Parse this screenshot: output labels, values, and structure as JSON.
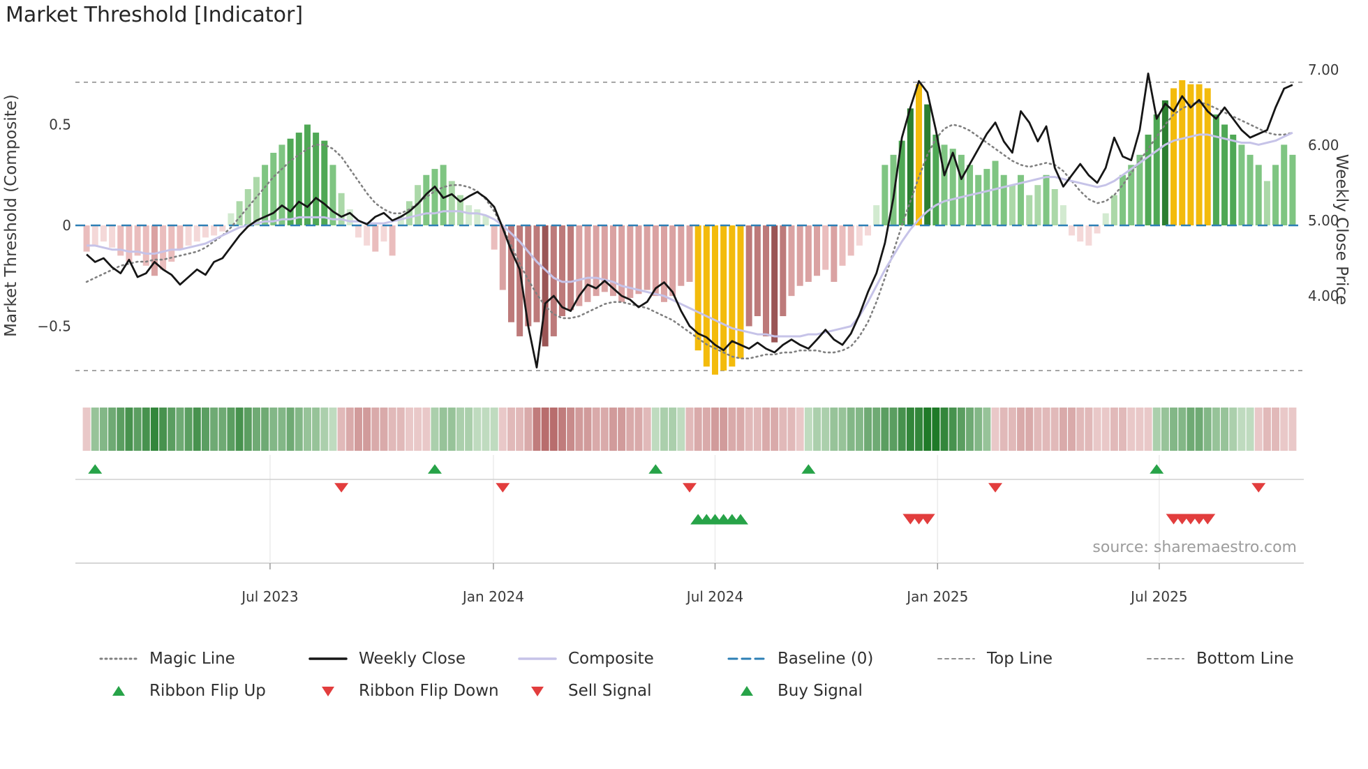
{
  "title": "Market Threshold [Indicator]",
  "source": "source: sharemaestro.com",
  "axes": {
    "left_label": "Market Threshold (Composite)",
    "right_label": "Weekly Close Price",
    "left_ticks": [
      {
        "value": 0.5,
        "label": "0.5"
      },
      {
        "value": 0.0,
        "label": "0"
      },
      {
        "value": -0.5,
        "label": "−0.5"
      }
    ],
    "right_ticks": [
      {
        "value": 7.0,
        "label": "7.00"
      },
      {
        "value": 6.0,
        "label": "6.00"
      },
      {
        "value": 5.0,
        "label": "5.00"
      },
      {
        "value": 4.0,
        "label": "4.00"
      }
    ]
  },
  "colors": {
    "magic": "#808080",
    "close": "#161616",
    "composite": "#c6c3e8",
    "baseline": "#2d7fb5",
    "band": "#909090",
    "buy": "#27a348",
    "sell": "#e23d3d",
    "gold": "#f3bb0c"
  },
  "legend": {
    "row1": [
      {
        "label": "Magic Line",
        "swatch": "magic"
      },
      {
        "label": "Weekly Close",
        "swatch": "close"
      },
      {
        "label": "Composite",
        "swatch": "composite"
      },
      {
        "label": "Baseline (0)",
        "swatch": "baseline"
      },
      {
        "label": "Top Line",
        "swatch": "refline"
      },
      {
        "label": "Bottom Line",
        "swatch": "refline"
      }
    ],
    "row2": [
      {
        "label": "Ribbon Flip Up",
        "swatch": "flip-up"
      },
      {
        "label": "Ribbon Flip Down",
        "swatch": "flip-down"
      },
      {
        "label": "Sell Signal",
        "swatch": "sell"
      },
      {
        "label": "Buy Signal",
        "swatch": "buy"
      }
    ]
  },
  "chart_data": {
    "type": "bar+line combo (weekly indicator with price overlay, signal ribbon and markers)",
    "n_weeks": 143,
    "frequency": "weekly",
    "left_ylim": [
      -0.85,
      0.85
    ],
    "right_ylim": [
      3.0,
      7.1
    ],
    "grid": "off (reference lines only)",
    "reference": {
      "top": 0.71,
      "baseline": 0,
      "bottom": -0.72
    },
    "x_ticks": [
      {
        "week": 21.6,
        "label": "Jul 2023"
      },
      {
        "week": 47.9,
        "label": "Jan 2024"
      },
      {
        "week": 74.0,
        "label": "Jul 2024"
      },
      {
        "week": 100.2,
        "label": "Jan 2025"
      },
      {
        "week": 126.3,
        "label": "Jul 2025"
      }
    ],
    "threshold": [
      -0.13,
      -0.1,
      -0.08,
      -0.11,
      -0.15,
      -0.18,
      -0.15,
      -0.2,
      -0.25,
      -0.22,
      -0.18,
      -0.12,
      -0.1,
      -0.08,
      -0.06,
      -0.05,
      -0.03,
      0.06,
      0.12,
      0.18,
      0.24,
      0.3,
      0.36,
      0.4,
      0.43,
      0.46,
      0.5,
      0.46,
      0.42,
      0.3,
      0.16,
      0.08,
      -0.06,
      -0.1,
      -0.13,
      -0.08,
      -0.15,
      0.05,
      0.12,
      0.2,
      0.25,
      0.28,
      0.3,
      0.22,
      0.15,
      0.1,
      0.08,
      0.05,
      -0.12,
      -0.32,
      -0.48,
      -0.55,
      -0.5,
      -0.48,
      -0.6,
      -0.55,
      -0.45,
      -0.42,
      -0.4,
      -0.38,
      -0.35,
      -0.33,
      -0.35,
      -0.38,
      -0.36,
      -0.34,
      -0.32,
      -0.35,
      -0.38,
      -0.35,
      -0.3,
      -0.28,
      -0.62,
      -0.7,
      -0.74,
      -0.72,
      -0.7,
      -0.66,
      -0.5,
      -0.45,
      -0.55,
      -0.58,
      -0.45,
      -0.35,
      -0.3,
      -0.28,
      -0.25,
      -0.22,
      -0.28,
      -0.2,
      -0.15,
      -0.1,
      -0.05,
      0.1,
      0.3,
      0.35,
      0.42,
      0.58,
      0.7,
      0.6,
      0.45,
      0.4,
      0.38,
      0.35,
      0.3,
      0.25,
      0.28,
      0.32,
      0.25,
      0.2,
      0.25,
      0.15,
      0.2,
      0.25,
      0.18,
      0.1,
      -0.05,
      -0.08,
      -0.1,
      -0.04,
      0.06,
      0.15,
      0.25,
      0.3,
      0.35,
      0.45,
      0.55,
      0.62,
      0.68,
      0.72,
      0.7,
      0.7,
      0.68,
      0.55,
      0.5,
      0.45,
      0.4,
      0.35,
      0.3,
      0.22,
      0.3,
      0.4,
      0.35
    ],
    "close": [
      4.55,
      4.45,
      4.5,
      4.38,
      4.3,
      4.48,
      4.25,
      4.3,
      4.45,
      4.35,
      4.28,
      4.15,
      4.25,
      4.35,
      4.28,
      4.45,
      4.5,
      4.65,
      4.8,
      4.92,
      5.0,
      5.05,
      5.1,
      5.2,
      5.12,
      5.25,
      5.18,
      5.3,
      5.22,
      5.12,
      5.05,
      5.1,
      5.0,
      4.95,
      5.05,
      5.1,
      5.0,
      5.05,
      5.12,
      5.22,
      5.35,
      5.45,
      5.3,
      5.35,
      5.25,
      5.32,
      5.38,
      5.3,
      5.18,
      4.9,
      4.6,
      4.35,
      3.6,
      3.05,
      3.9,
      4.0,
      3.85,
      3.8,
      4.0,
      4.15,
      4.1,
      4.2,
      4.1,
      4.0,
      3.95,
      3.85,
      3.92,
      4.1,
      4.18,
      4.05,
      3.8,
      3.6,
      3.5,
      3.45,
      3.35,
      3.28,
      3.4,
      3.35,
      3.3,
      3.38,
      3.3,
      3.25,
      3.35,
      3.42,
      3.35,
      3.3,
      3.42,
      3.55,
      3.42,
      3.35,
      3.5,
      3.75,
      4.05,
      4.3,
      4.7,
      5.3,
      6.1,
      6.5,
      6.85,
      6.7,
      6.2,
      5.6,
      5.9,
      5.55,
      5.75,
      5.95,
      6.15,
      6.3,
      6.05,
      5.9,
      6.45,
      6.3,
      6.05,
      6.25,
      5.7,
      5.45,
      5.6,
      5.75,
      5.6,
      5.5,
      5.7,
      6.1,
      5.85,
      5.8,
      6.2,
      6.95,
      6.35,
      6.55,
      6.45,
      6.65,
      6.5,
      6.6,
      6.45,
      6.35,
      6.5,
      6.35,
      6.2,
      6.1,
      6.15,
      6.2,
      6.5,
      6.75,
      6.8
    ],
    "composite": [
      -0.1,
      -0.1,
      -0.11,
      -0.12,
      -0.12,
      -0.13,
      -0.13,
      -0.14,
      -0.14,
      -0.13,
      -0.12,
      -0.12,
      -0.11,
      -0.1,
      -0.09,
      -0.07,
      -0.05,
      -0.03,
      -0.01,
      0.0,
      0.01,
      0.02,
      0.02,
      0.03,
      0.03,
      0.04,
      0.04,
      0.04,
      0.04,
      0.03,
      0.03,
      0.02,
      0.02,
      0.01,
      0.01,
      0.01,
      0.02,
      0.03,
      0.04,
      0.05,
      0.06,
      0.06,
      0.07,
      0.07,
      0.07,
      0.06,
      0.06,
      0.05,
      0.03,
      0.0,
      -0.04,
      -0.08,
      -0.13,
      -0.18,
      -0.22,
      -0.26,
      -0.28,
      -0.28,
      -0.27,
      -0.26,
      -0.26,
      -0.27,
      -0.28,
      -0.3,
      -0.31,
      -0.32,
      -0.33,
      -0.34,
      -0.35,
      -0.37,
      -0.39,
      -0.41,
      -0.43,
      -0.45,
      -0.47,
      -0.49,
      -0.51,
      -0.52,
      -0.53,
      -0.54,
      -0.54,
      -0.55,
      -0.55,
      -0.55,
      -0.55,
      -0.54,
      -0.54,
      -0.53,
      -0.52,
      -0.51,
      -0.5,
      -0.45,
      -0.38,
      -0.3,
      -0.22,
      -0.15,
      -0.08,
      -0.02,
      0.03,
      0.07,
      0.1,
      0.12,
      0.13,
      0.14,
      0.15,
      0.16,
      0.17,
      0.18,
      0.19,
      0.2,
      0.21,
      0.22,
      0.23,
      0.24,
      0.24,
      0.23,
      0.22,
      0.21,
      0.2,
      0.19,
      0.2,
      0.22,
      0.25,
      0.28,
      0.31,
      0.34,
      0.37,
      0.4,
      0.42,
      0.43,
      0.44,
      0.45,
      0.45,
      0.44,
      0.43,
      0.42,
      0.41,
      0.41,
      0.4,
      0.41,
      0.42,
      0.44,
      0.46
    ],
    "magic": [
      -0.28,
      -0.26,
      -0.24,
      -0.22,
      -0.2,
      -0.19,
      -0.18,
      -0.18,
      -0.17,
      -0.17,
      -0.16,
      -0.15,
      -0.14,
      -0.13,
      -0.11,
      -0.08,
      -0.05,
      -0.01,
      0.04,
      0.09,
      0.14,
      0.19,
      0.24,
      0.28,
      0.32,
      0.35,
      0.38,
      0.4,
      0.4,
      0.38,
      0.34,
      0.28,
      0.22,
      0.16,
      0.11,
      0.08,
      0.06,
      0.06,
      0.08,
      0.11,
      0.14,
      0.17,
      0.19,
      0.2,
      0.2,
      0.19,
      0.17,
      0.13,
      0.07,
      -0.01,
      -0.1,
      -0.19,
      -0.27,
      -0.34,
      -0.4,
      -0.44,
      -0.46,
      -0.46,
      -0.45,
      -0.43,
      -0.41,
      -0.39,
      -0.38,
      -0.38,
      -0.39,
      -0.4,
      -0.41,
      -0.43,
      -0.45,
      -0.47,
      -0.5,
      -0.53,
      -0.56,
      -0.59,
      -0.61,
      -0.63,
      -0.65,
      -0.66,
      -0.66,
      -0.65,
      -0.64,
      -0.64,
      -0.63,
      -0.63,
      -0.62,
      -0.62,
      -0.62,
      -0.63,
      -0.63,
      -0.62,
      -0.6,
      -0.55,
      -0.48,
      -0.38,
      -0.26,
      -0.13,
      0.0,
      0.12,
      0.24,
      0.35,
      0.43,
      0.48,
      0.5,
      0.49,
      0.47,
      0.44,
      0.41,
      0.38,
      0.35,
      0.32,
      0.3,
      0.29,
      0.3,
      0.31,
      0.3,
      0.27,
      0.22,
      0.17,
      0.13,
      0.11,
      0.12,
      0.15,
      0.2,
      0.26,
      0.32,
      0.38,
      0.44,
      0.5,
      0.55,
      0.58,
      0.6,
      0.61,
      0.6,
      0.58,
      0.56,
      0.54,
      0.52,
      0.5,
      0.48,
      0.46,
      0.45,
      0.45,
      0.46
    ],
    "ribbon": [
      -0.2,
      0.4,
      0.5,
      0.6,
      0.7,
      0.8,
      0.7,
      0.8,
      0.9,
      0.8,
      0.7,
      0.6,
      0.7,
      0.8,
      0.7,
      0.6,
      0.6,
      0.7,
      0.8,
      0.7,
      0.6,
      0.6,
      0.5,
      0.5,
      0.6,
      0.5,
      0.4,
      0.4,
      0.3,
      0.2,
      -0.3,
      -0.4,
      -0.5,
      -0.5,
      -0.4,
      -0.4,
      -0.3,
      -0.3,
      -0.2,
      -0.2,
      -0.2,
      0.3,
      0.4,
      0.4,
      0.3,
      0.3,
      0.2,
      0.2,
      0.2,
      -0.2,
      -0.3,
      -0.3,
      -0.4,
      -0.7,
      -0.8,
      -0.8,
      -0.7,
      -0.6,
      -0.5,
      -0.5,
      -0.4,
      -0.4,
      -0.5,
      -0.5,
      -0.4,
      -0.4,
      -0.3,
      0.2,
      0.3,
      0.3,
      0.2,
      -0.3,
      -0.4,
      -0.4,
      -0.5,
      -0.5,
      -0.4,
      -0.4,
      -0.3,
      -0.3,
      -0.4,
      -0.4,
      -0.3,
      -0.3,
      -0.2,
      0.2,
      0.3,
      0.3,
      0.4,
      0.4,
      0.5,
      0.5,
      0.6,
      0.6,
      0.7,
      0.7,
      0.8,
      0.9,
      0.9,
      1.0,
      1.0,
      0.9,
      0.8,
      0.7,
      0.6,
      0.5,
      0.4,
      -0.2,
      -0.3,
      -0.3,
      -0.4,
      -0.4,
      -0.3,
      -0.3,
      -0.3,
      -0.4,
      -0.4,
      -0.3,
      -0.3,
      -0.2,
      -0.2,
      -0.3,
      -0.3,
      -0.2,
      -0.2,
      -0.2,
      0.3,
      0.4,
      0.5,
      0.5,
      0.6,
      0.6,
      0.5,
      0.4,
      0.4,
      0.3,
      0.2,
      0.2,
      -0.2,
      -0.3,
      -0.3,
      -0.2,
      -0.2
    ],
    "gold_weeks": [
      72,
      73,
      74,
      75,
      76,
      77,
      98,
      128,
      129,
      130,
      131,
      132
    ],
    "flip_up_weeks": [
      1,
      41,
      67,
      85,
      126
    ],
    "flip_down_weeks": [
      30,
      49,
      71,
      107,
      138
    ],
    "buy_signal_weeks": [
      72,
      73,
      74,
      75,
      76,
      77
    ],
    "sell_signal_weeks": [
      97,
      98,
      99,
      128,
      129,
      130,
      131,
      132
    ]
  }
}
